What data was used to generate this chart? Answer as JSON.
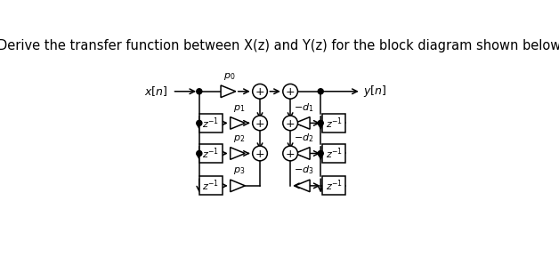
{
  "title": "Derive the transfer function between X(z) and Y(z) for the block diagram shown below",
  "title_fontsize": 10.5,
  "bg_color": "#ffffff",
  "line_color": "#000000",
  "fig_width": 6.28,
  "fig_height": 2.98,
  "dpi": 100,
  "labels_p": [
    "$p_1$",
    "$p_2$",
    "$p_3$"
  ],
  "labels_d": [
    "$-d_1$",
    "$-d_2$",
    "$-d_3$"
  ],
  "label_p0": "$p_0$",
  "label_xn": "$x[n]$",
  "label_yn": "$y[n]$",
  "label_zinv": "$z^{-1}$"
}
